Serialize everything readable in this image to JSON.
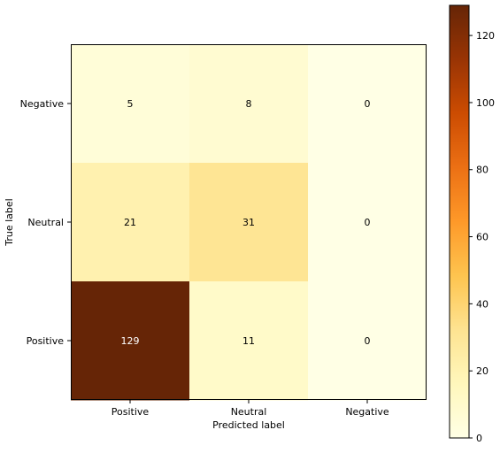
{
  "chart_data": {
    "type": "heatmap",
    "title": "",
    "xlabel": "Predicted label",
    "ylabel": "True label",
    "x_categories": [
      "Positive",
      "Neutral",
      "Negative"
    ],
    "y_categories": [
      "Negative",
      "Neutral",
      "Positive"
    ],
    "values": [
      [
        5,
        8,
        0
      ],
      [
        21,
        31,
        0
      ],
      [
        129,
        11,
        0
      ]
    ],
    "colorbar": {
      "colormap": "YlOrBr",
      "range": [
        0,
        129
      ],
      "ticks": [
        0,
        20,
        40,
        60,
        80,
        100,
        120
      ]
    },
    "text_colors": {
      "dark": "#000000",
      "light": "#ffffff"
    }
  }
}
